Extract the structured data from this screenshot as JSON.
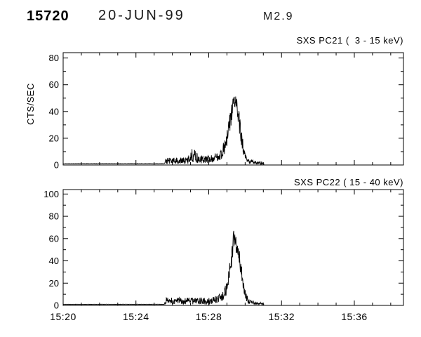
{
  "header": {
    "flare_number": "15720",
    "date": "20-JUN-99",
    "goes_class": "M2.9"
  },
  "chart_data": [
    {
      "type": "line",
      "title": "SXS PC21 (  3 - 15 keV)",
      "ylabel": "CTS/SEC",
      "xlabel": "",
      "ylim": [
        0,
        84
      ],
      "yticks": [
        0,
        20,
        40,
        60,
        80
      ],
      "y_minor_step": 10,
      "x_base_time": "15:20",
      "xlim_minutes_after_start": [
        0,
        18.7
      ],
      "xtick_positions_minutes": [
        0,
        4,
        8,
        12,
        16
      ],
      "xtick_labels": [
        "15:20",
        "15:24",
        "15:28",
        "15:32",
        "15:36"
      ],
      "x_minor_step_minutes": 1,
      "show_x_tick_labels": false,
      "grid": false,
      "line_color": "#000000",
      "noise_seed": 13,
      "sample_step_minutes": 0.015,
      "mean_amp_keypoints": [
        [
          0,
          1,
          0.15
        ],
        [
          5.55,
          1,
          0.15
        ],
        [
          5.65,
          3,
          2.5
        ],
        [
          6.8,
          3.2,
          2.5
        ],
        [
          7.15,
          8,
          6
        ],
        [
          7.45,
          4,
          3
        ],
        [
          8.2,
          4.5,
          3
        ],
        [
          8.7,
          8,
          4
        ],
        [
          9.0,
          18,
          7
        ],
        [
          9.25,
          40,
          9
        ],
        [
          9.4,
          48,
          7
        ],
        [
          9.55,
          44,
          9
        ],
        [
          9.75,
          24,
          7
        ],
        [
          9.95,
          8,
          4
        ],
        [
          10.1,
          3,
          2
        ],
        [
          10.6,
          2,
          1.5
        ],
        [
          10.95,
          1.5,
          1.2
        ],
        [
          11.05,
          0.3,
          0.3
        ]
      ]
    },
    {
      "type": "line",
      "title": "SXS PC22 ( 15 - 40 keV)",
      "ylabel": "",
      "xlabel": "",
      "ylim": [
        0,
        104
      ],
      "yticks": [
        0,
        20,
        40,
        60,
        80,
        100
      ],
      "y_minor_step": 10,
      "x_base_time": "15:20",
      "xlim_minutes_after_start": [
        0,
        18.7
      ],
      "xtick_positions_minutes": [
        0,
        4,
        8,
        12,
        16
      ],
      "xtick_labels": [
        "15:20",
        "15:24",
        "15:28",
        "15:32",
        "15:36"
      ],
      "x_minor_step_minutes": 1,
      "show_x_tick_labels": true,
      "grid": false,
      "line_color": "#000000",
      "noise_seed": 77,
      "sample_step_minutes": 0.015,
      "mean_amp_keypoints": [
        [
          0,
          1,
          0.12
        ],
        [
          5.55,
          1,
          0.12
        ],
        [
          5.65,
          4,
          3
        ],
        [
          8.2,
          4,
          3
        ],
        [
          8.7,
          7,
          4
        ],
        [
          9.0,
          15,
          6
        ],
        [
          9.2,
          35,
          9
        ],
        [
          9.38,
          60,
          9
        ],
        [
          9.5,
          55,
          10
        ],
        [
          9.65,
          45,
          8
        ],
        [
          9.85,
          25,
          7
        ],
        [
          10.0,
          10,
          5
        ],
        [
          10.15,
          4,
          2.5
        ],
        [
          10.6,
          2,
          1.5
        ],
        [
          10.95,
          1.5,
          1.2
        ],
        [
          11.05,
          0.3,
          0.3
        ]
      ]
    }
  ]
}
